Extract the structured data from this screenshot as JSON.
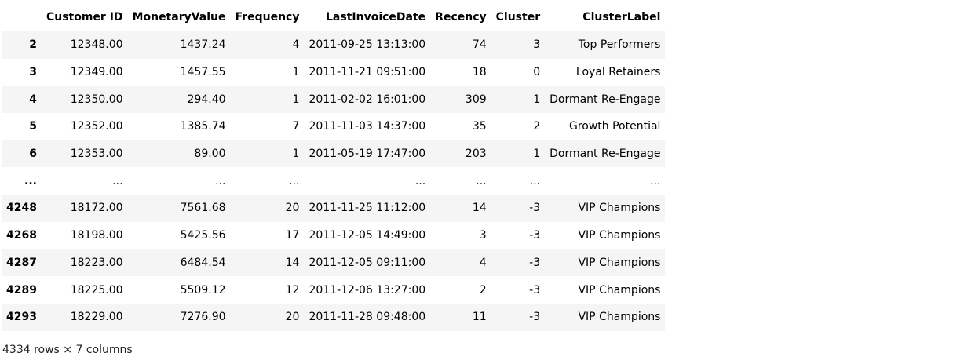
{
  "table": {
    "index_header": "",
    "columns": [
      "Customer ID",
      "MonetaryValue",
      "Frequency",
      "LastInvoiceDate",
      "Recency",
      "Cluster",
      "ClusterLabel"
    ],
    "rows": [
      {
        "index": "2",
        "cells": [
          "12348.00",
          "1437.24",
          "4",
          "2011-09-25 13:13:00",
          "74",
          "3",
          "Top Performers"
        ]
      },
      {
        "index": "3",
        "cells": [
          "12349.00",
          "1457.55",
          "1",
          "2011-11-21 09:51:00",
          "18",
          "0",
          "Loyal Retainers"
        ]
      },
      {
        "index": "4",
        "cells": [
          "12350.00",
          "294.40",
          "1",
          "2011-02-02 16:01:00",
          "309",
          "1",
          "Dormant Re-Engage"
        ]
      },
      {
        "index": "5",
        "cells": [
          "12352.00",
          "1385.74",
          "7",
          "2011-11-03 14:37:00",
          "35",
          "2",
          "Growth Potential"
        ]
      },
      {
        "index": "6",
        "cells": [
          "12353.00",
          "89.00",
          "1",
          "2011-05-19 17:47:00",
          "203",
          "1",
          "Dormant Re-Engage"
        ]
      },
      {
        "index": "...",
        "cells": [
          "...",
          "...",
          "...",
          "...",
          "...",
          "...",
          "..."
        ]
      },
      {
        "index": "4248",
        "cells": [
          "18172.00",
          "7561.68",
          "20",
          "2011-11-25 11:12:00",
          "14",
          "-3",
          "VIP Champions"
        ]
      },
      {
        "index": "4268",
        "cells": [
          "18198.00",
          "5425.56",
          "17",
          "2011-12-05 14:49:00",
          "3",
          "-3",
          "VIP Champions"
        ]
      },
      {
        "index": "4287",
        "cells": [
          "18223.00",
          "6484.54",
          "14",
          "2011-12-05 09:11:00",
          "4",
          "-3",
          "VIP Champions"
        ]
      },
      {
        "index": "4289",
        "cells": [
          "18225.00",
          "5509.12",
          "12",
          "2011-12-06 13:27:00",
          "2",
          "-3",
          "VIP Champions"
        ]
      },
      {
        "index": "4293",
        "cells": [
          "18229.00",
          "7276.90",
          "20",
          "2011-11-28 09:48:00",
          "11",
          "-3",
          "VIP Champions"
        ]
      }
    ]
  },
  "shape_text": "4334 rows × 7 columns"
}
